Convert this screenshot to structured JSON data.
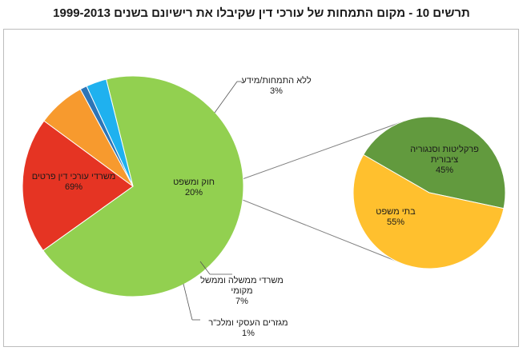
{
  "title": "תרשים 10 - מקום התמחות של עורכי דין שקיבלו את רישיונם בשנים 1999-2013",
  "chart_data": [
    {
      "type": "pie",
      "values": [
        69,
        20,
        7,
        1,
        3
      ],
      "labels": [
        "משרדי עורכי דין פרטים",
        "חוק ומשפט",
        "משרדי ממשלה וממשל מקומי",
        "מגזרים העסקי ומלכ\"ר",
        "ללא התמחות/מידע"
      ],
      "value_labels": [
        "69%",
        "20%",
        "7%",
        "1%",
        "3%"
      ],
      "colors": [
        "#92d050",
        "#e53423",
        "#f79a2e",
        "#2e75b6",
        "#1fb1ef"
      ]
    },
    {
      "type": "pie",
      "breakdown_of": "חוק ומשפט",
      "values": [
        45,
        55
      ],
      "labels": [
        "פרקליטות וסנגוריה ציבורית",
        "בתי משפט"
      ],
      "value_labels": [
        "45%",
        "55%"
      ],
      "colors": [
        "#629a3e",
        "#ffc02e"
      ]
    }
  ]
}
